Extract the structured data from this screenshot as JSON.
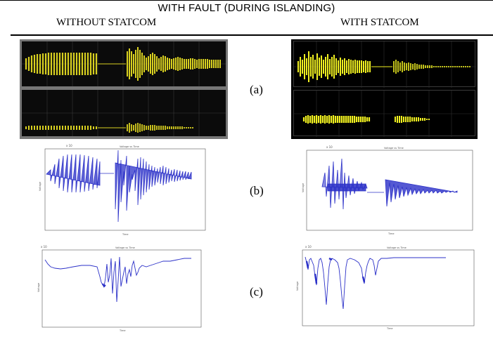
{
  "header": {
    "title": "WITH FAULT (DURING ISLANDING)",
    "col_left": "WITHOUT STATCOM",
    "col_right": "WITH STATCOM"
  },
  "rows": [
    {
      "label": "(a)"
    },
    {
      "label": "(b)"
    },
    {
      "label": "(c)"
    }
  ],
  "colors": {
    "scope_trace": "#d8d020",
    "scope_trace_bright": "#f0f020",
    "voltage_trace": "#2b30c8",
    "background": "#ffffff",
    "rule": "#000000"
  }
}
